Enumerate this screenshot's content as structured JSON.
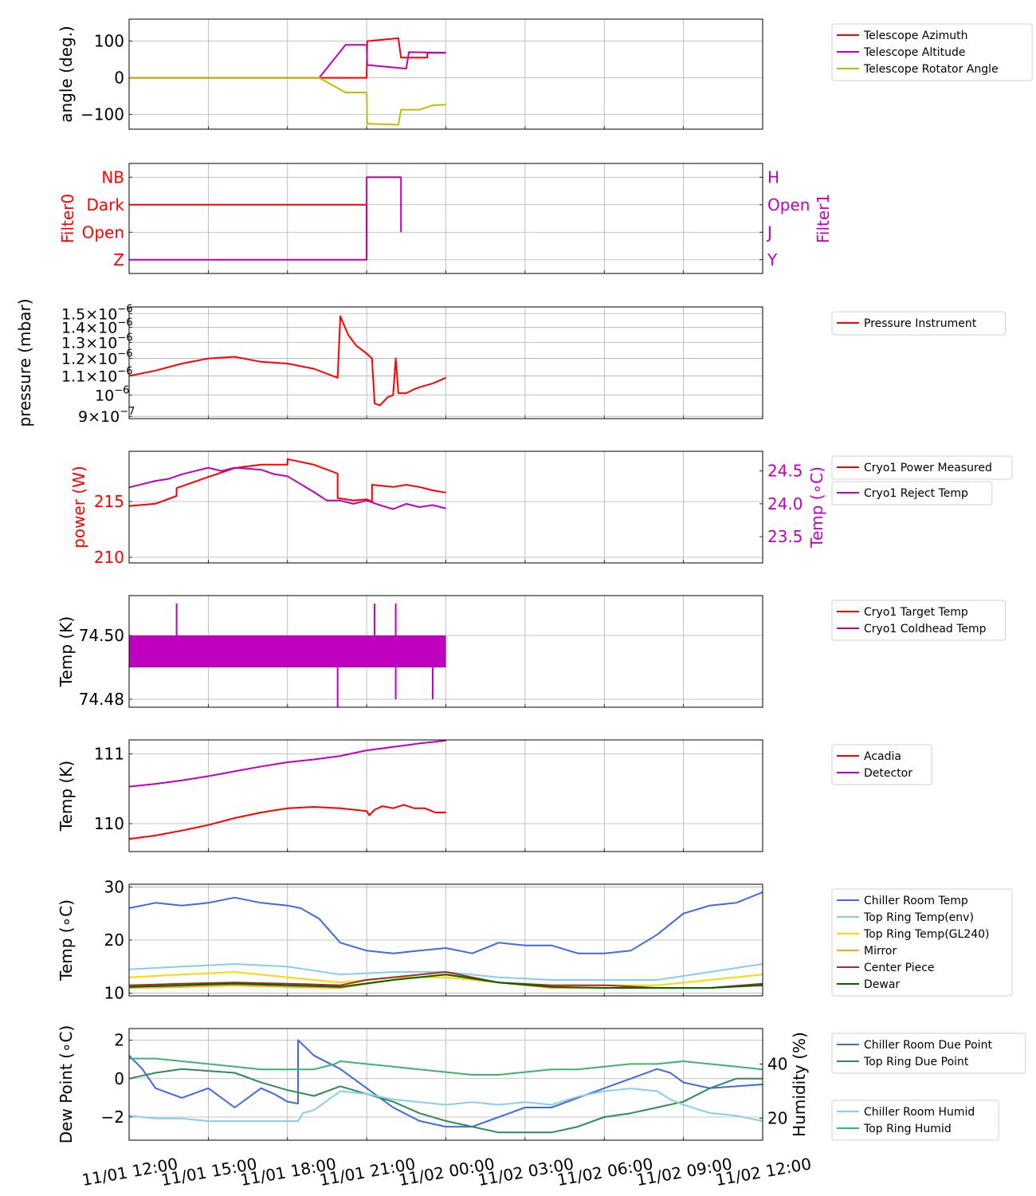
{
  "time_axis": {
    "tick_labels": [
      "11/01 12:00",
      "11/01 15:00",
      "11/01 18:00",
      "11/01 21:00",
      "11/02 00:00",
      "11/02 03:00",
      "11/02 06:00",
      "11/02 09:00",
      "11/02 12:00"
    ],
    "range_hours": [
      0,
      24
    ],
    "grid": true
  },
  "chart_data": [
    {
      "type": "line",
      "ylabel": "angle (deg.)",
      "ylim": [
        -140,
        160
      ],
      "yticks": [
        100,
        0,
        -100
      ],
      "ytick_labels": [
        "100",
        "0",
        "−100"
      ],
      "legend": "right",
      "series": [
        {
          "name": "Telescope Azimuth",
          "color": "#ff0000",
          "x": [
            0,
            9,
            9.02,
            10.2,
            10.3,
            11.3,
            11.3,
            12
          ],
          "y": [
            0,
            0,
            100,
            108,
            55,
            55,
            68,
            68
          ]
        },
        {
          "name": "Telescope Altitude",
          "color": "#bf00bf",
          "x": [
            0,
            7.2,
            8.2,
            9.0,
            9.02,
            10.5,
            10.6,
            12
          ],
          "y": [
            0,
            0,
            90,
            90,
            35,
            25,
            70,
            68
          ]
        },
        {
          "name": "Telescope Rotator Angle",
          "color": "#bfbf00",
          "x": [
            0,
            7.2,
            8.2,
            9.0,
            9.02,
            10.2,
            10.3,
            11.0,
            11.5,
            12
          ],
          "y": [
            0,
            0,
            -40,
            -40,
            -125,
            -128,
            -87,
            -87,
            -75,
            -73
          ]
        }
      ]
    },
    {
      "type": "line",
      "ylabel": "Filter0",
      "ylabel_right": "Filter1",
      "ylim": [
        -0.5,
        3.5
      ],
      "yticks": [
        3,
        2,
        1,
        0
      ],
      "ytick_labels": [
        "NB",
        "Dark",
        "Open",
        "Z"
      ],
      "ytick_labels_right": [
        "H",
        "Open",
        "J",
        "Y"
      ],
      "series": [
        {
          "axis": "left",
          "color": "#ff0000",
          "x": [
            0,
            9.0,
            9.0
          ],
          "y": [
            2,
            2,
            0
          ]
        },
        {
          "axis": "right",
          "color": "#bf00bf",
          "x": [
            0,
            9.0,
            9.0,
            10.3,
            10.3
          ],
          "y": [
            0,
            0,
            3,
            3,
            1
          ]
        }
      ]
    },
    {
      "type": "line",
      "ylabel": "pressure (mbar)",
      "yscale": "log",
      "ylim": [
        8.9e-07,
        1.55e-06
      ],
      "yticks": [
        1.5e-06,
        1.4e-06,
        1.3e-06,
        1.2e-06,
        1.1e-06,
        1e-06,
        9e-07
      ],
      "legend": "right",
      "series": [
        {
          "name": "Pressure Instrument",
          "color": "#ff0000",
          "x": [
            0,
            1,
            2,
            3,
            4,
            5,
            6,
            7,
            7.9,
            8.0,
            8.3,
            8.6,
            9.0,
            9.2,
            9.3,
            9.5,
            9.8,
            10.0,
            10.1,
            10.2,
            10.3,
            10.5,
            10.8,
            11.0,
            11.5,
            12
          ],
          "y": [
            1.1e-06,
            1.13e-06,
            1.17e-06,
            1.2e-06,
            1.21e-06,
            1.18e-06,
            1.17e-06,
            1.14e-06,
            1.09e-06,
            1.48e-06,
            1.35e-06,
            1.28e-06,
            1.23e-06,
            1.2e-06,
            9.6e-07,
            9.5e-07,
            9.9e-07,
            1e-06,
            1.2e-06,
            1.01e-06,
            1.01e-06,
            1.01e-06,
            1.03e-06,
            1.04e-06,
            1.06e-06,
            1.09e-06
          ]
        }
      ]
    },
    {
      "type": "line",
      "ylabel": "power (W)",
      "ylabel_right": "Temp (∘C)",
      "ylim": [
        209.5,
        219.5
      ],
      "yticks": [
        215,
        210
      ],
      "ylim_right": [
        23.1,
        24.8
      ],
      "yticks_right": [
        24.5,
        24.0,
        23.5
      ],
      "ytick_labels_right": [
        "24.5",
        "24.0",
        "23.5"
      ],
      "legend": "right",
      "series": [
        {
          "name": "Cryo1 Power Measured",
          "color": "#ff0000",
          "axis": "left",
          "x": [
            0,
            1,
            1.8,
            1.8,
            3,
            4,
            5,
            6,
            6,
            7,
            7.9,
            7.9,
            8.5,
            9.0,
            9.2,
            9.2,
            10.0,
            10.5,
            11,
            11.5,
            12
          ],
          "y": [
            214.6,
            214.8,
            215.5,
            216.2,
            217.2,
            218.0,
            218.3,
            218.3,
            218.8,
            218.3,
            217.5,
            215.3,
            215.1,
            215.2,
            215.0,
            216.5,
            216.3,
            216.5,
            216.3,
            216.0,
            215.8
          ]
        },
        {
          "name": "Cryo1 Reject Temp",
          "color": "#bf00bf",
          "axis": "right",
          "x": [
            0,
            0.5,
            1,
            1.5,
            2,
            2.5,
            3,
            3.5,
            4,
            5,
            5.5,
            6,
            6.5,
            7,
            7.5,
            8,
            8.5,
            9,
            9.5,
            10,
            10.5,
            11,
            11.5,
            12
          ],
          "y": [
            24.25,
            24.3,
            24.35,
            24.38,
            24.45,
            24.5,
            24.55,
            24.5,
            24.55,
            24.52,
            24.45,
            24.42,
            24.3,
            24.18,
            24.05,
            24.05,
            24.0,
            24.05,
            23.98,
            23.92,
            24.0,
            23.95,
            23.98,
            23.93
          ]
        }
      ]
    },
    {
      "type": "line",
      "ylabel": "Temp (K)",
      "ylim": [
        74.4775,
        74.5125
      ],
      "yticks": [
        74.5,
        74.48
      ],
      "ytick_labels": [
        "74.50",
        "74.48"
      ],
      "legend": "right",
      "series": [
        {
          "name": "Cryo1 Target Temp",
          "color": "#ff0000",
          "x": [],
          "y": []
        },
        {
          "name": "Cryo1 Coldhead Temp",
          "color": "#bf00bf",
          "band": [
            74.49,
            74.5
          ],
          "x_range": [
            0,
            12
          ],
          "spikes": [
            {
              "x": 1.8,
              "y": 74.51
            },
            {
              "x": 7.9,
              "y": 74.4775
            },
            {
              "x": 9.3,
              "y": 74.51
            },
            {
              "x": 10.1,
              "y": 74.51
            },
            {
              "x": 10.1,
              "y": 74.48
            },
            {
              "x": 11.5,
              "y": 74.48
            }
          ]
        }
      ]
    },
    {
      "type": "line",
      "ylabel": "Temp (K)",
      "ylim": [
        109.6,
        111.2
      ],
      "yticks": [
        111,
        110
      ],
      "legend": "right",
      "series": [
        {
          "name": "Acadia",
          "color": "#ff0000",
          "x": [
            0,
            1,
            2,
            3,
            4,
            5,
            6,
            7,
            8,
            9.0,
            9.1,
            9.3,
            9.6,
            10,
            10.4,
            10.8,
            11.2,
            11.6,
            12
          ],
          "y": [
            109.78,
            109.83,
            109.9,
            109.98,
            110.08,
            110.16,
            110.22,
            110.24,
            110.22,
            110.18,
            110.12,
            110.2,
            110.25,
            110.22,
            110.27,
            110.22,
            110.22,
            110.16,
            110.16
          ]
        },
        {
          "name": "Detector",
          "color": "#bf00bf",
          "x": [
            0,
            1,
            2,
            3,
            4,
            5,
            6,
            7,
            8,
            9,
            10,
            11,
            12
          ],
          "y": [
            110.53,
            110.57,
            110.62,
            110.68,
            110.75,
            110.82,
            110.88,
            110.92,
            110.97,
            111.05,
            111.1,
            111.15,
            111.19
          ]
        }
      ]
    },
    {
      "type": "line",
      "ylabel": "Temp (∘C)",
      "ylim": [
        9.5,
        30.5
      ],
      "yticks": [
        30,
        20,
        10
      ],
      "legend": "right",
      "series": [
        {
          "name": "Chiller Room Temp",
          "color": "#4169e1",
          "x": [
            0,
            1,
            2,
            3,
            4,
            5,
            6,
            6.5,
            7.2,
            8,
            9,
            10,
            11,
            12,
            13,
            14,
            15,
            16,
            17,
            18,
            19,
            20,
            21,
            22,
            23,
            24
          ],
          "y": [
            26,
            27,
            26.5,
            27,
            28,
            27,
            26.5,
            26,
            24,
            19.5,
            18,
            17.5,
            18,
            18.5,
            17.5,
            19.5,
            19,
            19,
            17.5,
            17.5,
            18,
            21,
            25,
            26.5,
            27,
            29
          ]
        },
        {
          "name": "Top Ring Temp(env)",
          "color": "#87ceeb",
          "x": [
            0,
            2,
            4,
            6,
            8,
            10,
            12,
            14,
            16,
            18,
            20,
            22,
            24
          ],
          "y": [
            14.5,
            15,
            15.5,
            15,
            13.5,
            14,
            14,
            13,
            12.5,
            12.5,
            12.5,
            14,
            15.5
          ]
        },
        {
          "name": "Top Ring Temp(GL240)",
          "color": "#ffd700",
          "x": [
            0,
            2,
            4,
            6,
            8,
            10,
            12,
            14,
            16,
            18,
            20,
            22,
            24
          ],
          "y": [
            13,
            13.5,
            14,
            13,
            12,
            13,
            13,
            12,
            11.5,
            11.5,
            11.5,
            12.5,
            13.5
          ]
        },
        {
          "name": "Mirror",
          "color": "#ffa500",
          "x": [
            0,
            2,
            4,
            6,
            8,
            10,
            12,
            14,
            16,
            18,
            20,
            22,
            24
          ],
          "y": [
            11,
            11.2,
            11.5,
            11.2,
            11,
            12.5,
            13.5,
            12,
            11,
            11,
            11,
            11,
            11.5
          ]
        },
        {
          "name": "Center Piece",
          "color": "#a52a2a",
          "x": [
            0,
            2,
            4,
            6,
            8,
            9,
            10,
            12,
            13,
            14,
            16,
            18,
            20,
            22,
            24
          ],
          "y": [
            11.5,
            11.8,
            12,
            11.8,
            11.5,
            12.5,
            13,
            14,
            13,
            12,
            11.5,
            11.5,
            11,
            11,
            11.8
          ]
        },
        {
          "name": "Dewar",
          "color": "#006400",
          "x": [
            0,
            2,
            4,
            6,
            8,
            10,
            12,
            14,
            16,
            18,
            20,
            22,
            24
          ],
          "y": [
            11.2,
            11.5,
            11.8,
            11.5,
            11.2,
            12.5,
            13.5,
            12,
            11.2,
            11,
            11,
            11,
            11.5
          ]
        }
      ]
    },
    {
      "type": "line",
      "ylabel": "Dew Point (∘C)",
      "ylabel_right": "Humidity (%)",
      "ylim": [
        -3.2,
        2.6
      ],
      "yticks": [
        2,
        0,
        -2
      ],
      "ytick_labels": [
        "2",
        "0",
        "−2"
      ],
      "ylim_right": [
        12,
        53
      ],
      "yticks_right": [
        40,
        20
      ],
      "legend": "right",
      "series": [
        {
          "name": "Chiller Room Due Point",
          "color": "#4169e1",
          "axis": "left",
          "x": [
            0,
            0.5,
            1,
            2,
            3,
            4,
            5,
            5.5,
            6,
            6.4,
            6.4,
            7,
            8,
            9,
            10,
            11,
            12,
            13,
            14,
            15,
            16,
            17,
            18,
            19,
            20,
            20.5,
            21,
            22,
            24
          ],
          "y": [
            1.2,
            0.5,
            -0.5,
            -1,
            -0.5,
            -1.5,
            -0.5,
            -0.8,
            -1.2,
            -1.3,
            2,
            1.2,
            0.5,
            -0.5,
            -1.5,
            -2.2,
            -2.5,
            -2.5,
            -2,
            -1.5,
            -1.5,
            -1,
            -0.5,
            0,
            0.5,
            0.3,
            -0.2,
            -0.5,
            -0.3
          ]
        },
        {
          "name": "Top Ring Due Point",
          "color": "#2e8b57",
          "axis": "left",
          "x": [
            0,
            1,
            2,
            3,
            4,
            5,
            6,
            7,
            8,
            9,
            10,
            11,
            12,
            13,
            14,
            15,
            16,
            17,
            18,
            19,
            20,
            21,
            22,
            23,
            24
          ],
          "y": [
            0,
            0.3,
            0.5,
            0.4,
            0.3,
            -0.2,
            -0.6,
            -0.9,
            -0.4,
            -0.8,
            -1.2,
            -1.8,
            -2.2,
            -2.5,
            -2.8,
            -2.8,
            -2.8,
            -2.5,
            -2.0,
            -1.8,
            -1.5,
            -1.2,
            -0.5,
            0,
            0
          ]
        },
        {
          "name": "Chiller Room Humid",
          "color": "#87ceeb",
          "axis": "right",
          "x": [
            0,
            1,
            2,
            3,
            4,
            5,
            6,
            6.4,
            6.6,
            7,
            8,
            9,
            10,
            11,
            12,
            13,
            14,
            15,
            16,
            17,
            18,
            19,
            20,
            20.5,
            21,
            22,
            23,
            24
          ],
          "y": [
            21,
            20,
            20,
            19,
            19,
            19,
            19,
            19,
            22,
            23,
            30,
            29,
            27,
            26,
            25,
            26,
            25,
            26,
            25,
            28,
            30,
            31,
            30,
            27,
            25,
            22,
            21,
            19
          ]
        },
        {
          "name": "Top Ring Humid",
          "color": "#3cb371",
          "axis": "right",
          "x": [
            0,
            1,
            2,
            3,
            4,
            5,
            6,
            7,
            7.8,
            8,
            9,
            10,
            11,
            12,
            13,
            14,
            15,
            16,
            17,
            18,
            19,
            20,
            21,
            22,
            23,
            24
          ],
          "y": [
            42,
            42,
            41,
            40,
            39,
            38,
            38,
            38,
            40,
            41,
            40,
            39,
            38,
            37,
            36,
            36,
            37,
            38,
            38,
            39,
            40,
            40,
            41,
            40,
            39,
            38
          ]
        }
      ]
    }
  ]
}
